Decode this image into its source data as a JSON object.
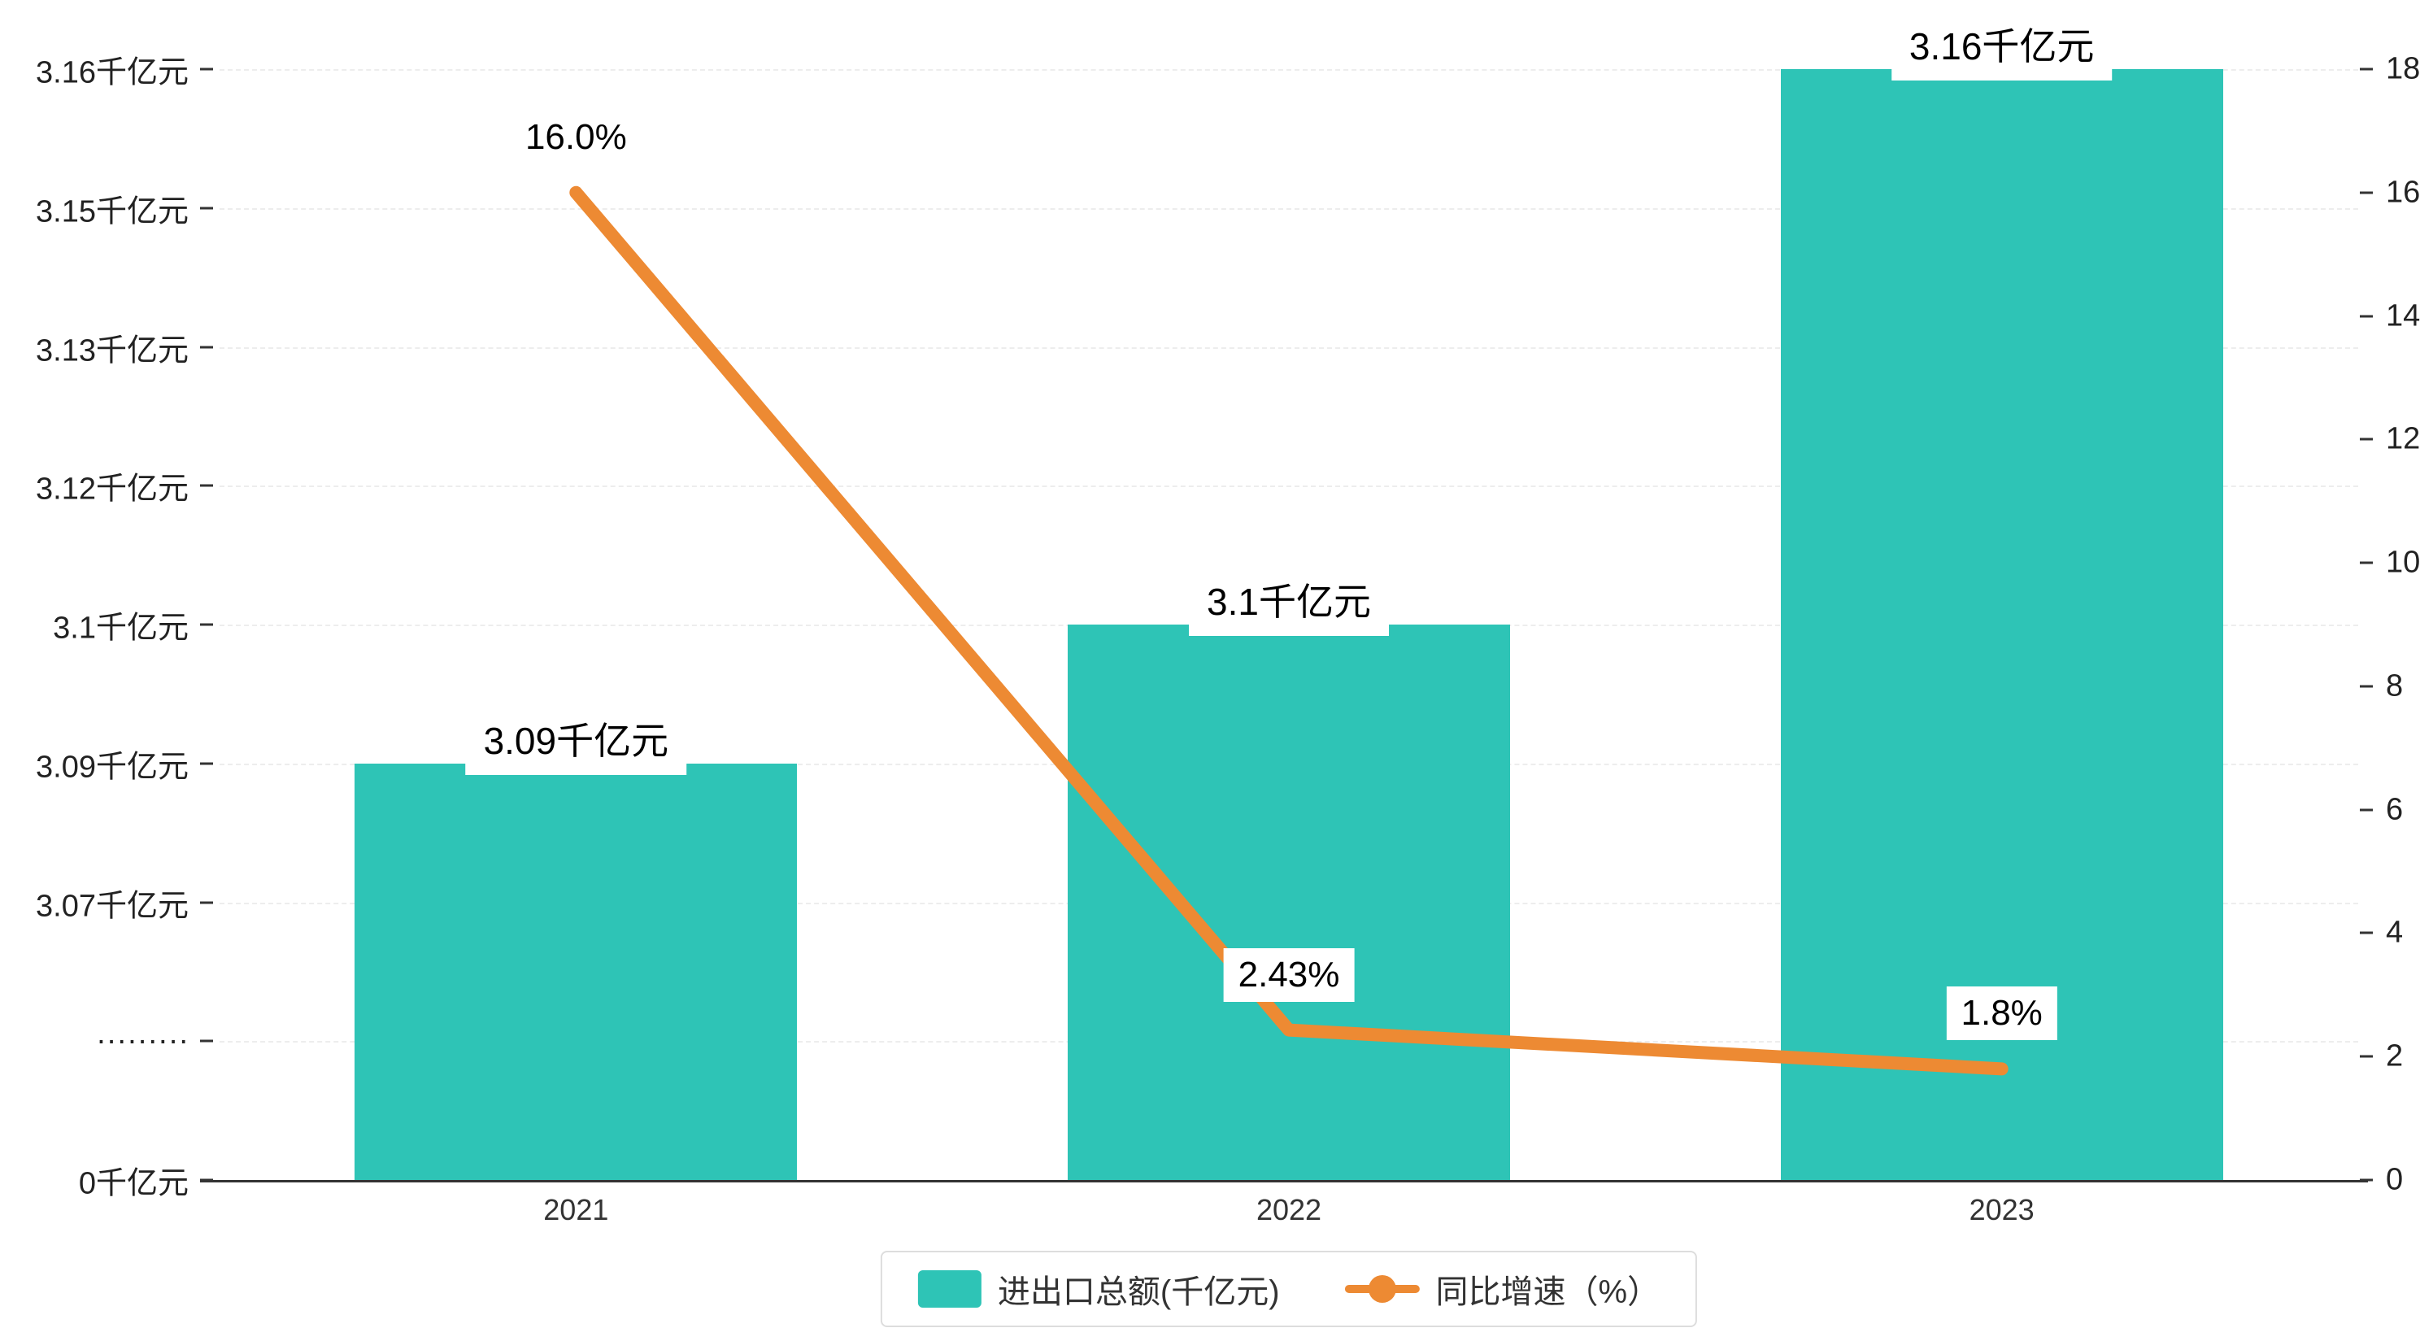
{
  "colors": {
    "bar": "#2EC4B6",
    "line": "#ED8A33",
    "grid": "#EDEDED",
    "axis": "#333333",
    "legend_border": "#DDDDDD"
  },
  "chart_data": {
    "type": "bar+line",
    "title": "",
    "categories": [
      "2021",
      "2022",
      "2023"
    ],
    "series": [
      {
        "name": "进出口总额(千亿元)",
        "type": "bar",
        "axis": "left",
        "unit": "千亿元",
        "values": [
          3.09,
          3.1,
          3.16
        ],
        "labels": [
          "3.09千亿元",
          "3.1千亿元",
          "3.16千亿元"
        ],
        "color": "#2EC4B6"
      },
      {
        "name": "同比增速（%）",
        "type": "line",
        "axis": "right",
        "unit": "%",
        "values": [
          16.0,
          2.43,
          1.8
        ],
        "labels": [
          "16.0%",
          "2.43%",
          "1.8%"
        ],
        "color": "#ED8A33"
      }
    ],
    "left_axis": {
      "tick_labels": [
        "0千亿元",
        "·········",
        "3.07千亿元",
        "3.09千亿元",
        "3.1千亿元",
        "3.12千亿元",
        "3.13千亿元",
        "3.15千亿元",
        "3.16千亿元"
      ],
      "top_ticks": [
        3.07,
        3.09,
        3.1,
        3.12,
        3.13,
        3.15,
        3.16
      ],
      "has_break": true
    },
    "right_axis": {
      "min": 0,
      "max": 18,
      "tick_labels": [
        "0",
        "2",
        "4",
        "6",
        "8",
        "10",
        "12",
        "14",
        "16",
        "18"
      ]
    },
    "legend": {
      "position": "bottom",
      "items": [
        "进出口总额(千亿元)",
        "同比增速（%）"
      ]
    },
    "grid": true,
    "legend_position": "bottom"
  }
}
